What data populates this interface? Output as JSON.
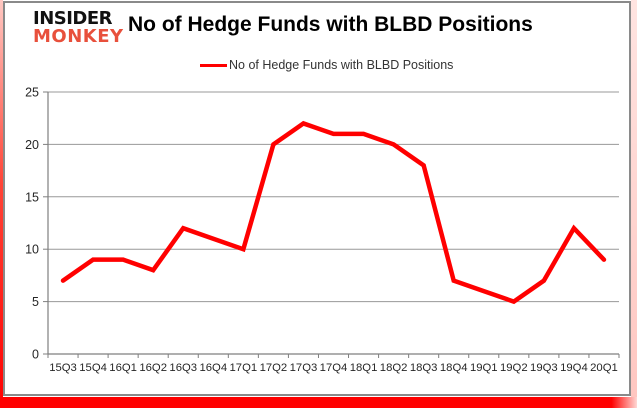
{
  "header": {
    "brand": {
      "line1": "INSIDER",
      "line2": "MONKEY",
      "accent_color": "#e8503c"
    },
    "title": "No of Hedge Funds with BLBD Positions"
  },
  "legend": {
    "label": "No of Hedge Funds with BLBD Positions",
    "swatch_color": "#ff0000"
  },
  "chart_data": {
    "type": "line",
    "title": "No of Hedge Funds with BLBD Positions",
    "categories": [
      "15Q3",
      "15Q4",
      "16Q1",
      "16Q2",
      "16Q3",
      "16Q4",
      "17Q1",
      "17Q2",
      "17Q3",
      "17Q4",
      "18Q1",
      "18Q2",
      "18Q3",
      "18Q4",
      "19Q1",
      "19Q2",
      "19Q3",
      "19Q4",
      "20Q1"
    ],
    "series": [
      {
        "name": "No of Hedge Funds with BLBD Positions",
        "color": "#ff0000",
        "values": [
          7,
          9,
          9,
          8,
          12,
          11,
          10,
          20,
          22,
          21,
          21,
          20,
          18,
          7,
          6,
          5,
          7,
          12,
          9
        ]
      }
    ],
    "xlabel": "",
    "ylabel": "",
    "ylim": [
      0,
      25
    ],
    "y_ticks": [
      0,
      5,
      10,
      15,
      20,
      25
    ],
    "grid": true,
    "legend_position": "top"
  },
  "colors": {
    "line_red": "#ff0000",
    "logo_red": "#e8503c",
    "grid": "#989898",
    "axis": "#7f7f7f",
    "tick_text": "#262626",
    "card_border": "#8a8a8a",
    "frame_red": "#ff0000"
  }
}
